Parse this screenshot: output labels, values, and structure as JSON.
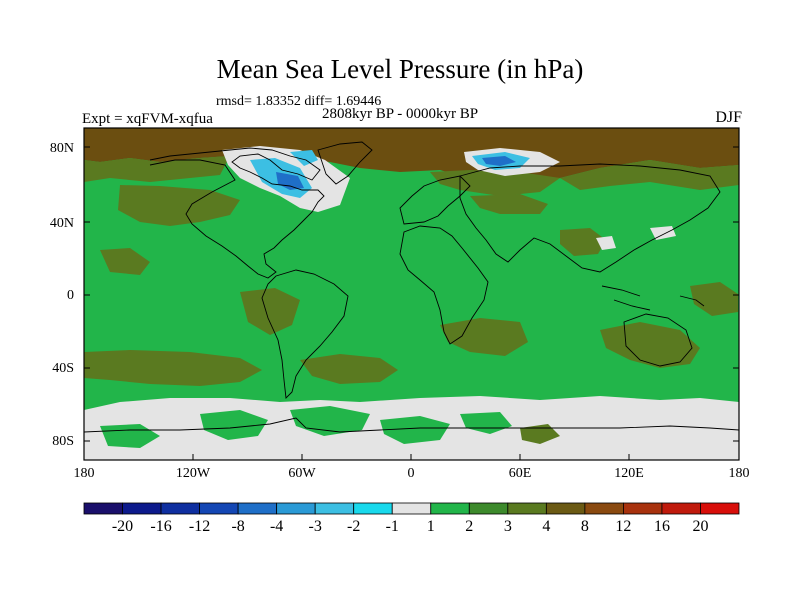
{
  "title": "Mean Sea Level Pressure (in hPa)",
  "stats": "rmsd= 1.83352 diff= 1.69446",
  "period": "2808kyr BP - 0000kyr BP",
  "experiment": "Expt = xqFVM-xqfua",
  "season": "DJF",
  "lat_labels": [
    "80N",
    "40N",
    "0",
    "40S",
    "80S"
  ],
  "lon_labels": [
    "180",
    "120W",
    "60W",
    "0",
    "60E",
    "120E",
    "180"
  ],
  "colorbar": {
    "labels": [
      "-20",
      "-16",
      "-12",
      "-8",
      "-4",
      "-3",
      "-2",
      "-1",
      "1",
      "2",
      "3",
      "4",
      "8",
      "12",
      "16",
      "20"
    ],
    "colors": [
      "#1a0f6b",
      "#0d1a8c",
      "#0f2fa0",
      "#1447b4",
      "#1f6fc8",
      "#2a9ad6",
      "#3cbfe3",
      "#19d9ec",
      "#e4e4e4",
      "#22b54a",
      "#3d8a2c",
      "#5a7a20",
      "#6b5a14",
      "#8a4a10",
      "#a8320e",
      "#c01a0c",
      "#d80e0a"
    ]
  },
  "palette": {
    "green": "#22b54a",
    "olive": "#5a7a20",
    "brown": "#6b4e10",
    "gray": "#e4e4e4",
    "light_blue": "#3cbfe3",
    "blue": "#1f6fc8",
    "coast": "#000000"
  }
}
